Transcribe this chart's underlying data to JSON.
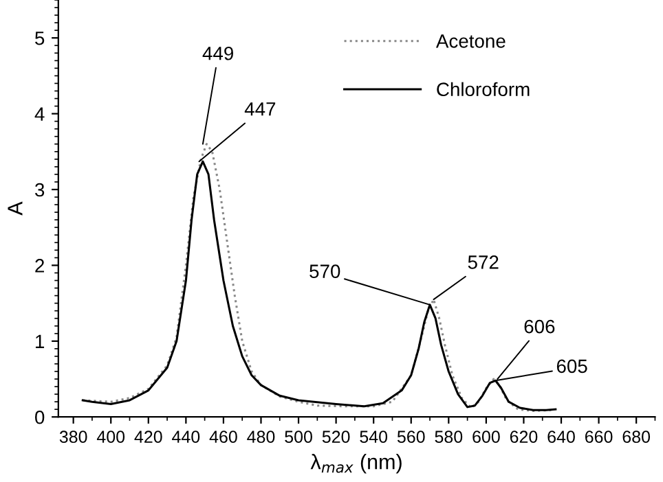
{
  "chart_data": {
    "type": "line",
    "xlabel": "λ$_{max}$ (nm)",
    "ylabel": "A",
    "xlim": [
      372,
      690
    ],
    "xticks": [
      380,
      400,
      420,
      440,
      460,
      480,
      500,
      520,
      540,
      560,
      580,
      600,
      620,
      640,
      660,
      680
    ],
    "ylim": [
      0,
      5.5
    ],
    "yticks": [
      0,
      1,
      2,
      3,
      4,
      5
    ],
    "grid": false,
    "legend": "top right",
    "series": [
      {
        "name": "Acetone",
        "color": "#888888",
        "line_style": "dotted",
        "x": [
          385,
          400,
          410,
          420,
          430,
          435,
          440,
          444,
          448,
          451,
          454,
          458,
          462,
          466,
          470,
          475,
          480,
          490,
          500,
          510,
          525,
          540,
          550,
          560,
          565,
          569,
          572,
          575,
          578,
          582,
          587,
          592,
          596,
          600,
          604,
          607,
          611,
          617,
          625,
          635
        ],
        "values": [
          0.22,
          0.2,
          0.25,
          0.37,
          0.68,
          1.05,
          2.0,
          2.9,
          3.4,
          3.6,
          3.5,
          3.0,
          2.3,
          1.6,
          1.0,
          0.6,
          0.42,
          0.27,
          0.2,
          0.15,
          0.14,
          0.14,
          0.2,
          0.55,
          1.0,
          1.4,
          1.55,
          1.3,
          0.95,
          0.55,
          0.25,
          0.12,
          0.2,
          0.38,
          0.5,
          0.42,
          0.22,
          0.1,
          0.08,
          0.09
        ]
      },
      {
        "name": "Chloroform",
        "color": "#000000",
        "line_style": "solid",
        "x": [
          385,
          390,
          400,
          410,
          420,
          430,
          435,
          440,
          443,
          446,
          449,
          452,
          455,
          460,
          465,
          470,
          475,
          480,
          490,
          500,
          520,
          535,
          545,
          555,
          560,
          564,
          567,
          570,
          573,
          576,
          580,
          585,
          590,
          594,
          598,
          602,
          605,
          608,
          612,
          618,
          625,
          632,
          637
        ],
        "values": [
          0.22,
          0.2,
          0.17,
          0.22,
          0.35,
          0.65,
          1.0,
          1.8,
          2.6,
          3.2,
          3.37,
          3.2,
          2.6,
          1.8,
          1.2,
          0.8,
          0.55,
          0.42,
          0.28,
          0.22,
          0.17,
          0.14,
          0.18,
          0.35,
          0.55,
          0.9,
          1.25,
          1.48,
          1.3,
          0.95,
          0.6,
          0.3,
          0.13,
          0.15,
          0.28,
          0.45,
          0.48,
          0.38,
          0.2,
          0.12,
          0.09,
          0.09,
          0.1
        ]
      }
    ],
    "annotations": [
      {
        "text": "449",
        "x": 449,
        "y": 3.6
      },
      {
        "text": "447",
        "x": 447,
        "y": 3.37
      },
      {
        "text": "570",
        "x": 570,
        "y": 1.48
      },
      {
        "text": "572",
        "x": 572,
        "y": 1.55
      },
      {
        "text": "606",
        "x": 606,
        "y": 0.5
      },
      {
        "text": "605",
        "x": 605,
        "y": 0.48
      }
    ]
  }
}
